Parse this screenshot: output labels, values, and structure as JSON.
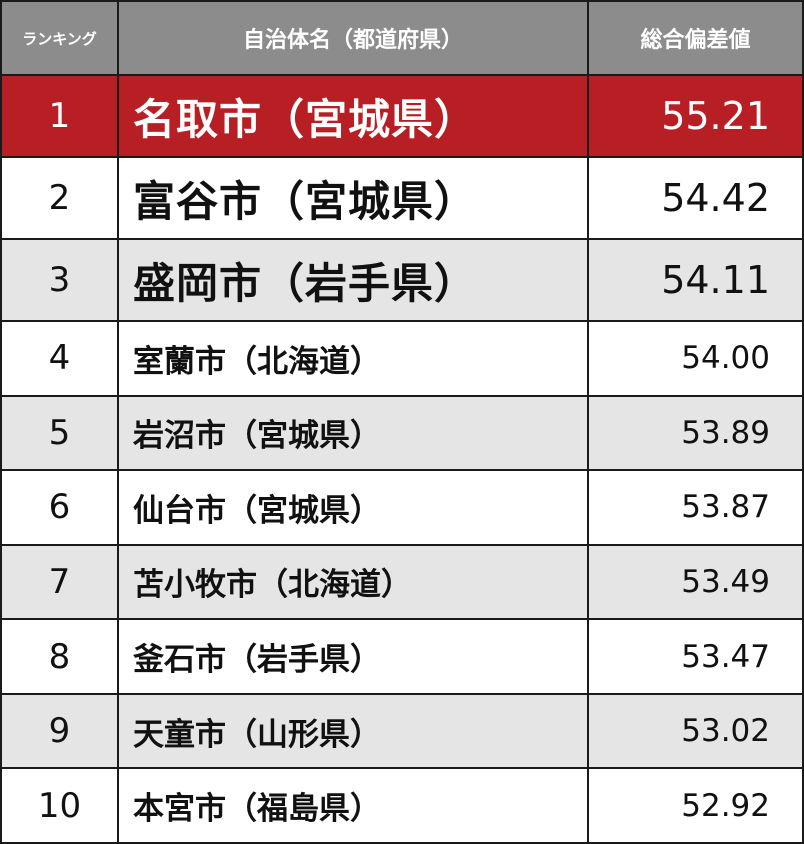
{
  "table": {
    "header": [
      "ランキング",
      "自治体名（都道府県）",
      "総合偏差値"
    ],
    "rows": [
      [
        "1",
        "名取市（宮城県）",
        "55.21"
      ],
      [
        "2",
        "富谷市（宮城県）",
        "54.42"
      ],
      [
        "3",
        "盛岡市（岩手県）",
        "54.11"
      ],
      [
        "4",
        "室蘭市（北海道）",
        "54.00"
      ],
      [
        "5",
        "岩沼市（宮城県）",
        "53.89"
      ],
      [
        "6",
        "仙台市（宮城県）",
        "53.87"
      ],
      [
        "7",
        "苫小牧市（北海道）",
        "53.49"
      ],
      [
        "8",
        "釜石市（岩手県）",
        "53.47"
      ],
      [
        "9",
        "天童市（山形県）",
        "53.02"
      ],
      [
        "10",
        "本宮市（福島県）",
        "52.92"
      ]
    ]
  }
}
